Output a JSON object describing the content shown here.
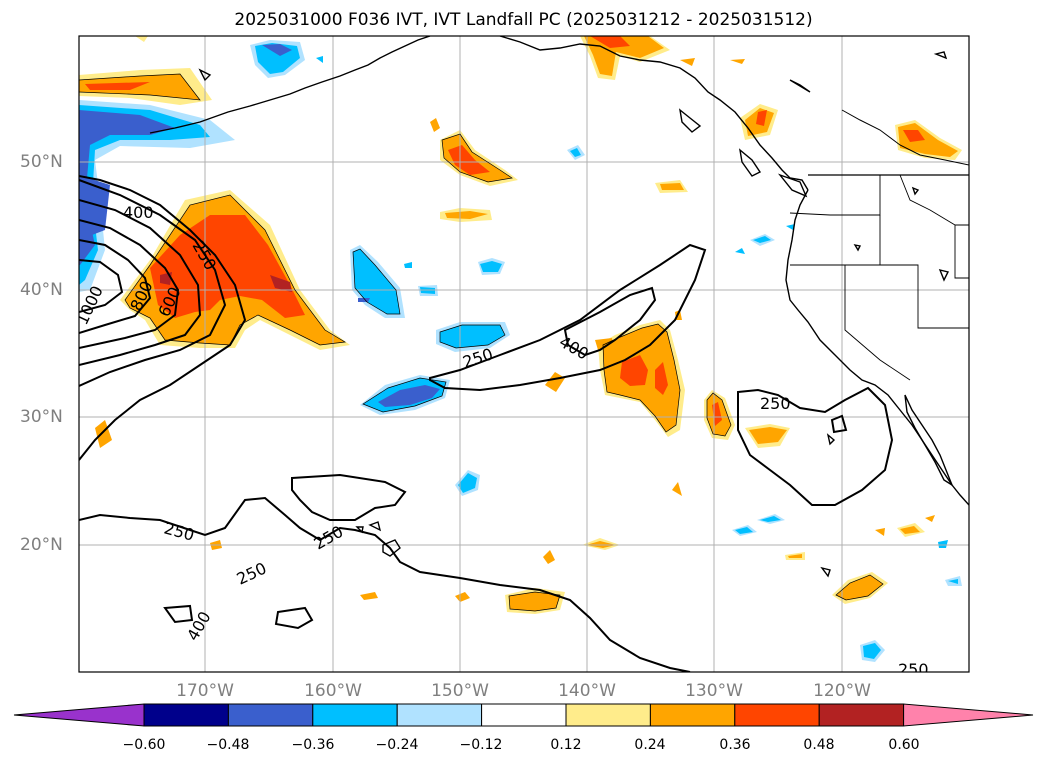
{
  "title": "2025031000 F036 IVT, IVT Landfall PC (2025031212 - 2025031512)",
  "lat_labels": [
    "50°N",
    "40°N",
    "30°N",
    "20°N"
  ],
  "lon_labels": [
    "170°W",
    "160°W",
    "150°W",
    "140°W",
    "130°W",
    "120°W"
  ],
  "contour_labels": [
    "400",
    "250",
    "1000",
    "800",
    "600",
    "250",
    "400",
    "250",
    "250",
    "250",
    "250",
    "400",
    "250"
  ],
  "colorbar": {
    "ticks": [
      "−0.60",
      "−0.48",
      "−0.36",
      "−0.24",
      "−0.12",
      "0.12",
      "0.24",
      "0.36",
      "0.48",
      "0.60"
    ],
    "colors": [
      "#9932cc",
      "#00008b",
      "#3a5fcd",
      "#00bfff",
      "#b0e2ff",
      "#ffffff",
      "#ffec8b",
      "#ffa500",
      "#ff4500",
      "#b22222",
      "#ff82ab"
    ]
  },
  "colors": {
    "grid": "#b0b0b0",
    "axis_label": "#7f7f7f",
    "land_line": "#000000"
  }
}
